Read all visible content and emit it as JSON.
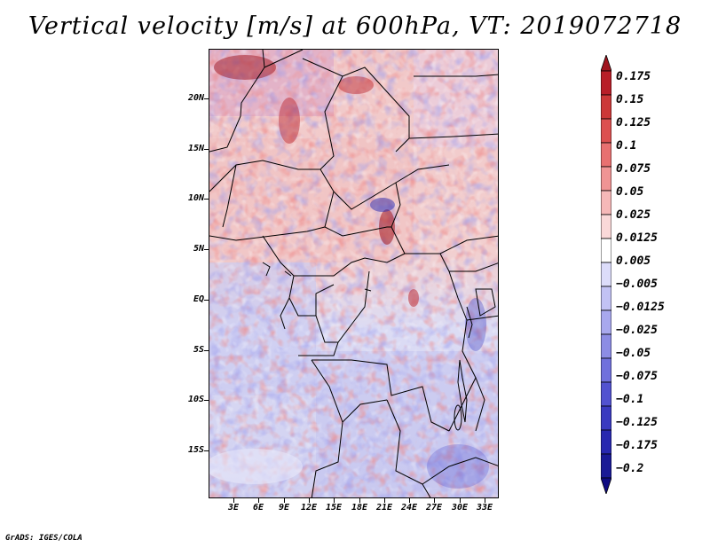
{
  "title": "Vertical velocity [m/s] at 600hPa, VT: 2019072718",
  "map": {
    "region": "Central Africa",
    "variable": "Vertical velocity",
    "level": "600hPa",
    "valid_time": "2019072718",
    "lat_labels": [
      "20N",
      "15N",
      "10N",
      "5N",
      "EQ",
      "5S",
      "10S",
      "15S"
    ],
    "lon_labels": [
      "3E",
      "6E",
      "9E",
      "12E",
      "15E",
      "18E",
      "21E",
      "24E",
      "27E",
      "30E",
      "33E"
    ]
  },
  "colorbar": {
    "levels": [
      "0.175",
      "0.15",
      "0.125",
      "0.1",
      "0.075",
      "0.05",
      "0.025",
      "0.0125",
      "0.005",
      "−0.005",
      "−0.0125",
      "−0.025",
      "−0.05",
      "−0.075",
      "−0.1",
      "−0.125",
      "−0.175",
      "−0.2"
    ],
    "colors": [
      "#a0141e",
      "#b81e28",
      "#cc3838",
      "#dc5050",
      "#e87070",
      "#f09494",
      "#f6b8b8",
      "#fad8d8",
      "#ffffff",
      "#dcdcfa",
      "#c2c2f4",
      "#a8a8ee",
      "#8c8ce4",
      "#7070dc",
      "#5252d0",
      "#3a3ac0",
      "#2828b0",
      "#1a1a96",
      "#100c82"
    ]
  },
  "credit": "GrADS: IGES/COLA"
}
